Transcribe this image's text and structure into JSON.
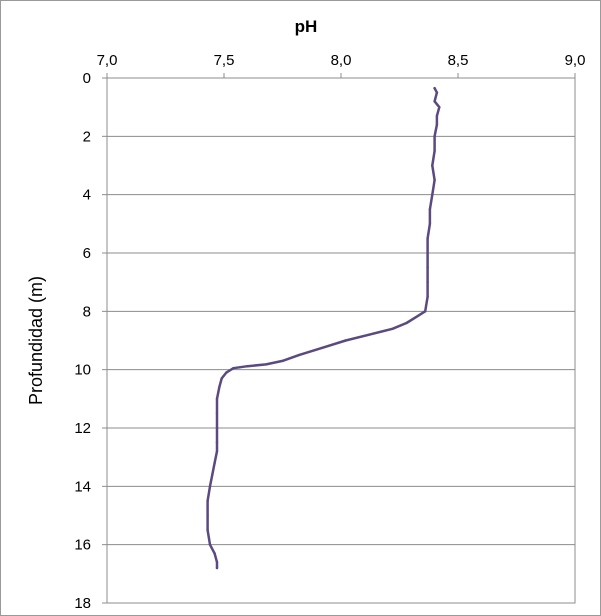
{
  "chart_data": {
    "type": "line",
    "title": "",
    "xlabel": "pH",
    "ylabel": "Profundidad (m)",
    "x_axis_position": "top",
    "y_inverted": true,
    "xlim": [
      7.0,
      9.0
    ],
    "ylim": [
      0,
      18
    ],
    "x_ticks": [
      "7,0",
      "7,5",
      "8,0",
      "8,5",
      "9,0"
    ],
    "y_ticks": [
      "0",
      "2",
      "4",
      "6",
      "8",
      "10",
      "12",
      "14",
      "16",
      "18"
    ],
    "grid": {
      "horizontal": true,
      "vertical": false
    },
    "series": [
      {
        "color": "#5b4a80",
        "points": [
          [
            8.4,
            0.35
          ],
          [
            8.41,
            0.5
          ],
          [
            8.4,
            0.8
          ],
          [
            8.42,
            1.0
          ],
          [
            8.41,
            1.3
          ],
          [
            8.41,
            1.6
          ],
          [
            8.4,
            2.0
          ],
          [
            8.4,
            2.5
          ],
          [
            8.39,
            3.0
          ],
          [
            8.4,
            3.5
          ],
          [
            8.39,
            4.0
          ],
          [
            8.38,
            4.5
          ],
          [
            8.38,
            5.0
          ],
          [
            8.37,
            5.5
          ],
          [
            8.37,
            6.0
          ],
          [
            8.37,
            6.5
          ],
          [
            8.37,
            7.0
          ],
          [
            8.37,
            7.5
          ],
          [
            8.36,
            8.0
          ],
          [
            8.32,
            8.2
          ],
          [
            8.28,
            8.4
          ],
          [
            8.22,
            8.6
          ],
          [
            8.12,
            8.8
          ],
          [
            8.02,
            9.0
          ],
          [
            7.92,
            9.25
          ],
          [
            7.82,
            9.5
          ],
          [
            7.75,
            9.7
          ],
          [
            7.68,
            9.82
          ],
          [
            7.6,
            9.88
          ],
          [
            7.54,
            9.95
          ],
          [
            7.51,
            10.1
          ],
          [
            7.49,
            10.3
          ],
          [
            7.48,
            10.6
          ],
          [
            7.47,
            11.0
          ],
          [
            7.47,
            11.5
          ],
          [
            7.47,
            12.0
          ],
          [
            7.47,
            12.5
          ],
          [
            7.47,
            12.8
          ],
          [
            7.46,
            13.2
          ],
          [
            7.45,
            13.6
          ],
          [
            7.44,
            14.0
          ],
          [
            7.43,
            14.5
          ],
          [
            7.43,
            15.0
          ],
          [
            7.43,
            15.5
          ],
          [
            7.44,
            16.0
          ],
          [
            7.46,
            16.3
          ],
          [
            7.47,
            16.6
          ],
          [
            7.47,
            16.8
          ]
        ]
      }
    ]
  }
}
